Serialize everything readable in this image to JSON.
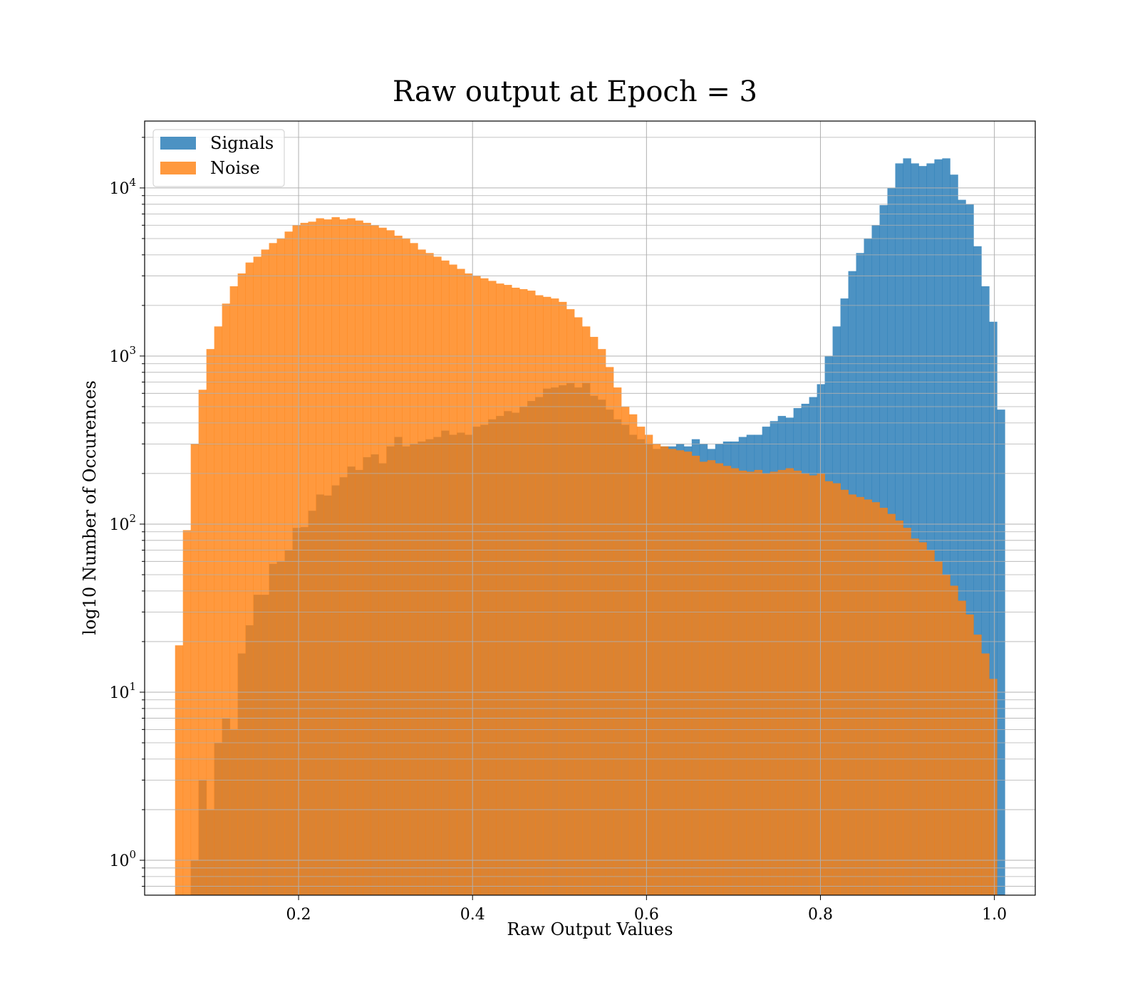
{
  "chart_data": {
    "type": "histogram",
    "title": "Raw output at Epoch = 3",
    "xlabel": "Raw Output Values",
    "ylabel": "log10 Number of Occurences",
    "y_scale": "log",
    "xlim": [
      0.023,
      1.047
    ],
    "ylim": [
      0.62,
      25000
    ],
    "x_ticks": [
      0.2,
      0.4,
      0.6,
      0.8,
      1.0
    ],
    "x_tick_labels": [
      "0.2",
      "0.4",
      "0.6",
      "0.8",
      "1.0"
    ],
    "y_ticks": [
      1,
      10,
      100,
      1000,
      10000
    ],
    "y_tick_labels": [
      {
        "base": "10",
        "exp": "0"
      },
      {
        "base": "10",
        "exp": "1"
      },
      {
        "base": "10",
        "exp": "2"
      },
      {
        "base": "10",
        "exp": "3"
      },
      {
        "base": "10",
        "exp": "4"
      }
    ],
    "grid": true,
    "legend_placement": "upper-left",
    "series": [
      {
        "name": "Signals",
        "color": "#1f77b4",
        "alpha": 0.8,
        "bins": [
          [
            0.076,
            0.085,
            1
          ],
          [
            0.085,
            0.094,
            3
          ],
          [
            0.094,
            0.103,
            2
          ],
          [
            0.103,
            0.112,
            5
          ],
          [
            0.112,
            0.121,
            7
          ],
          [
            0.121,
            0.13,
            6
          ],
          [
            0.13,
            0.139,
            17
          ],
          [
            0.139,
            0.148,
            25
          ],
          [
            0.148,
            0.157,
            38
          ],
          [
            0.157,
            0.166,
            38
          ],
          [
            0.166,
            0.175,
            58
          ],
          [
            0.175,
            0.184,
            60
          ],
          [
            0.184,
            0.193,
            70
          ],
          [
            0.193,
            0.202,
            95
          ],
          [
            0.202,
            0.211,
            96
          ],
          [
            0.211,
            0.22,
            120
          ],
          [
            0.22,
            0.229,
            150
          ],
          [
            0.229,
            0.238,
            148
          ],
          [
            0.238,
            0.247,
            170
          ],
          [
            0.247,
            0.256,
            190
          ],
          [
            0.256,
            0.265,
            220
          ],
          [
            0.265,
            0.274,
            210
          ],
          [
            0.274,
            0.283,
            250
          ],
          [
            0.283,
            0.292,
            260
          ],
          [
            0.292,
            0.301,
            230
          ],
          [
            0.301,
            0.31,
            290
          ],
          [
            0.31,
            0.319,
            330
          ],
          [
            0.319,
            0.328,
            290
          ],
          [
            0.328,
            0.337,
            300
          ],
          [
            0.337,
            0.346,
            310
          ],
          [
            0.346,
            0.355,
            320
          ],
          [
            0.355,
            0.364,
            330
          ],
          [
            0.364,
            0.373,
            360
          ],
          [
            0.373,
            0.382,
            340
          ],
          [
            0.382,
            0.391,
            350
          ],
          [
            0.391,
            0.4,
            340
          ],
          [
            0.4,
            0.409,
            380
          ],
          [
            0.409,
            0.418,
            390
          ],
          [
            0.418,
            0.427,
            420
          ],
          [
            0.427,
            0.436,
            440
          ],
          [
            0.436,
            0.445,
            470
          ],
          [
            0.445,
            0.454,
            460
          ],
          [
            0.454,
            0.463,
            500
          ],
          [
            0.463,
            0.472,
            540
          ],
          [
            0.472,
            0.481,
            570
          ],
          [
            0.481,
            0.49,
            640
          ],
          [
            0.49,
            0.499,
            650
          ],
          [
            0.499,
            0.508,
            670
          ],
          [
            0.508,
            0.517,
            690
          ],
          [
            0.517,
            0.526,
            650
          ],
          [
            0.526,
            0.535,
            690
          ],
          [
            0.535,
            0.544,
            580
          ],
          [
            0.544,
            0.553,
            550
          ],
          [
            0.553,
            0.562,
            480
          ],
          [
            0.562,
            0.571,
            420
          ],
          [
            0.571,
            0.58,
            390
          ],
          [
            0.58,
            0.589,
            340
          ],
          [
            0.589,
            0.598,
            320
          ],
          [
            0.598,
            0.607,
            300
          ],
          [
            0.607,
            0.616,
            280
          ],
          [
            0.616,
            0.625,
            290
          ],
          [
            0.625,
            0.634,
            290
          ],
          [
            0.634,
            0.643,
            300
          ],
          [
            0.643,
            0.652,
            290
          ],
          [
            0.652,
            0.661,
            320
          ],
          [
            0.661,
            0.67,
            300
          ],
          [
            0.67,
            0.679,
            280
          ],
          [
            0.679,
            0.688,
            300
          ],
          [
            0.688,
            0.697,
            310
          ],
          [
            0.697,
            0.706,
            310
          ],
          [
            0.706,
            0.715,
            330
          ],
          [
            0.715,
            0.724,
            340
          ],
          [
            0.724,
            0.733,
            340
          ],
          [
            0.733,
            0.742,
            380
          ],
          [
            0.742,
            0.751,
            410
          ],
          [
            0.751,
            0.76,
            440
          ],
          [
            0.76,
            0.769,
            430
          ],
          [
            0.769,
            0.778,
            490
          ],
          [
            0.778,
            0.787,
            520
          ],
          [
            0.787,
            0.796,
            570
          ],
          [
            0.796,
            0.805,
            680
          ],
          [
            0.805,
            0.814,
            1000
          ],
          [
            0.814,
            0.823,
            1500
          ],
          [
            0.823,
            0.832,
            2200
          ],
          [
            0.832,
            0.841,
            3200
          ],
          [
            0.841,
            0.85,
            4100
          ],
          [
            0.85,
            0.859,
            5000
          ],
          [
            0.859,
            0.868,
            6000
          ],
          [
            0.868,
            0.877,
            7900
          ],
          [
            0.877,
            0.886,
            10000
          ],
          [
            0.886,
            0.895,
            14000
          ],
          [
            0.895,
            0.904,
            15000
          ],
          [
            0.904,
            0.913,
            14000
          ],
          [
            0.913,
            0.922,
            13500
          ],
          [
            0.922,
            0.931,
            14000
          ],
          [
            0.931,
            0.94,
            14800
          ],
          [
            0.94,
            0.949,
            15000
          ],
          [
            0.949,
            0.958,
            12000
          ],
          [
            0.958,
            0.967,
            8500
          ],
          [
            0.967,
            0.976,
            8000
          ],
          [
            0.976,
            0.985,
            4500
          ],
          [
            0.985,
            0.994,
            2600
          ],
          [
            0.994,
            1.003,
            1600
          ],
          [
            1.003,
            1.012,
            480
          ]
        ]
      },
      {
        "name": "Noise",
        "color": "#ff7f0e",
        "alpha": 0.8,
        "bins": [
          [
            0.058,
            0.067,
            19
          ],
          [
            0.067,
            0.076,
            92
          ],
          [
            0.076,
            0.085,
            300
          ],
          [
            0.085,
            0.094,
            630
          ],
          [
            0.094,
            0.103,
            1100
          ],
          [
            0.103,
            0.112,
            1500
          ],
          [
            0.112,
            0.121,
            2050
          ],
          [
            0.121,
            0.13,
            2600
          ],
          [
            0.13,
            0.139,
            3100
          ],
          [
            0.139,
            0.148,
            3600
          ],
          [
            0.148,
            0.157,
            3900
          ],
          [
            0.157,
            0.166,
            4300
          ],
          [
            0.166,
            0.175,
            4700
          ],
          [
            0.175,
            0.184,
            5000
          ],
          [
            0.184,
            0.193,
            5500
          ],
          [
            0.193,
            0.202,
            6000
          ],
          [
            0.202,
            0.211,
            6200
          ],
          [
            0.211,
            0.22,
            6300
          ],
          [
            0.22,
            0.229,
            6600
          ],
          [
            0.229,
            0.238,
            6500
          ],
          [
            0.238,
            0.247,
            6700
          ],
          [
            0.247,
            0.256,
            6500
          ],
          [
            0.256,
            0.265,
            6600
          ],
          [
            0.265,
            0.274,
            6400
          ],
          [
            0.274,
            0.283,
            6200
          ],
          [
            0.283,
            0.292,
            6000
          ],
          [
            0.292,
            0.301,
            5800
          ],
          [
            0.301,
            0.31,
            5600
          ],
          [
            0.31,
            0.319,
            5200
          ],
          [
            0.319,
            0.328,
            5000
          ],
          [
            0.328,
            0.337,
            4700
          ],
          [
            0.337,
            0.346,
            4300
          ],
          [
            0.346,
            0.355,
            4100
          ],
          [
            0.355,
            0.364,
            3900
          ],
          [
            0.364,
            0.373,
            3700
          ],
          [
            0.373,
            0.382,
            3500
          ],
          [
            0.382,
            0.391,
            3300
          ],
          [
            0.391,
            0.4,
            3100
          ],
          [
            0.4,
            0.409,
            3000
          ],
          [
            0.409,
            0.418,
            2900
          ],
          [
            0.418,
            0.427,
            2800
          ],
          [
            0.427,
            0.436,
            2700
          ],
          [
            0.436,
            0.445,
            2650
          ],
          [
            0.445,
            0.454,
            2550
          ],
          [
            0.454,
            0.463,
            2500
          ],
          [
            0.463,
            0.472,
            2450
          ],
          [
            0.472,
            0.481,
            2300
          ],
          [
            0.481,
            0.49,
            2250
          ],
          [
            0.49,
            0.499,
            2200
          ],
          [
            0.499,
            0.508,
            2100
          ],
          [
            0.508,
            0.517,
            1900
          ],
          [
            0.517,
            0.526,
            1700
          ],
          [
            0.526,
            0.535,
            1500
          ],
          [
            0.535,
            0.544,
            1300
          ],
          [
            0.544,
            0.553,
            1100
          ],
          [
            0.553,
            0.562,
            860
          ],
          [
            0.562,
            0.571,
            650
          ],
          [
            0.571,
            0.58,
            500
          ],
          [
            0.58,
            0.589,
            450
          ],
          [
            0.589,
            0.598,
            380
          ],
          [
            0.598,
            0.607,
            340
          ],
          [
            0.607,
            0.616,
            300
          ],
          [
            0.616,
            0.625,
            290
          ],
          [
            0.625,
            0.634,
            280
          ],
          [
            0.634,
            0.643,
            275
          ],
          [
            0.643,
            0.652,
            270
          ],
          [
            0.652,
            0.661,
            255
          ],
          [
            0.661,
            0.67,
            235
          ],
          [
            0.67,
            0.679,
            240
          ],
          [
            0.679,
            0.688,
            230
          ],
          [
            0.688,
            0.697,
            222
          ],
          [
            0.697,
            0.706,
            215
          ],
          [
            0.706,
            0.715,
            208
          ],
          [
            0.715,
            0.724,
            205
          ],
          [
            0.724,
            0.733,
            210
          ],
          [
            0.733,
            0.742,
            200
          ],
          [
            0.742,
            0.751,
            205
          ],
          [
            0.751,
            0.76,
            210
          ],
          [
            0.76,
            0.769,
            215
          ],
          [
            0.769,
            0.778,
            208
          ],
          [
            0.778,
            0.787,
            200
          ],
          [
            0.787,
            0.796,
            195
          ],
          [
            0.796,
            0.805,
            200
          ],
          [
            0.805,
            0.814,
            180
          ],
          [
            0.814,
            0.823,
            175
          ],
          [
            0.823,
            0.832,
            160
          ],
          [
            0.832,
            0.841,
            150
          ],
          [
            0.841,
            0.85,
            145
          ],
          [
            0.85,
            0.859,
            140
          ],
          [
            0.859,
            0.868,
            135
          ],
          [
            0.868,
            0.877,
            125
          ],
          [
            0.877,
            0.886,
            115
          ],
          [
            0.886,
            0.895,
            105
          ],
          [
            0.895,
            0.904,
            95
          ],
          [
            0.904,
            0.913,
            82
          ],
          [
            0.913,
            0.922,
            78
          ],
          [
            0.922,
            0.931,
            70
          ],
          [
            0.931,
            0.94,
            60
          ],
          [
            0.94,
            0.949,
            50
          ],
          [
            0.949,
            0.958,
            43
          ],
          [
            0.958,
            0.967,
            35
          ],
          [
            0.967,
            0.976,
            29
          ],
          [
            0.976,
            0.985,
            22
          ],
          [
            0.985,
            0.994,
            17
          ],
          [
            0.994,
            1.003,
            12
          ]
        ]
      }
    ]
  }
}
